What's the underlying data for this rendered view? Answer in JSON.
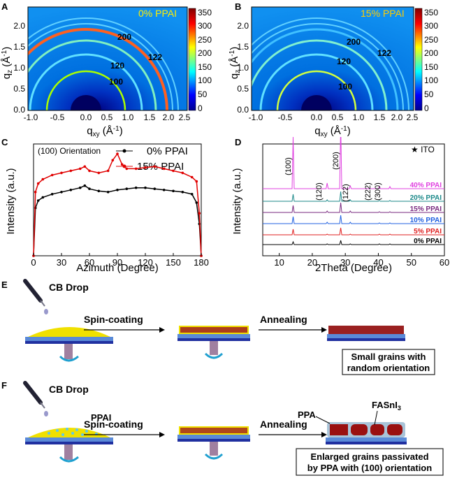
{
  "panels": {
    "A": {
      "letter": "A",
      "label": "0% PPAI",
      "xticks": [
        "-1.0",
        "-0.5",
        "0.0",
        "0.5",
        "1.0",
        "1.5",
        "2.0",
        "2.5"
      ],
      "yticks": [
        "0.0",
        "0.5",
        "1.0",
        "1.5",
        "2.0"
      ],
      "peaks": [
        "200",
        "120",
        "122",
        "100"
      ],
      "cbar_ticks": [
        "350",
        "300",
        "250",
        "200",
        "150",
        "100",
        "50",
        "0"
      ]
    },
    "B": {
      "letter": "B",
      "label": "15% PPAI",
      "xticks": [
        "-1.0",
        "-0.5",
        "0.0",
        "0.5",
        "1.0",
        "1.5",
        "2.0",
        "2.5"
      ],
      "yticks": [
        "0.0",
        "0.5",
        "1.0",
        "1.5",
        "2.0"
      ],
      "peaks": [
        "200",
        "120",
        "122",
        "100"
      ],
      "cbar_ticks": [
        "350",
        "300",
        "250",
        "200",
        "150",
        "100",
        "50",
        "0"
      ]
    },
    "C": {
      "letter": "C",
      "title": "(100) Orientation",
      "legend": [
        "0% PPAI",
        "15% PPAI"
      ],
      "xlabel": "Azimuth (Degree)",
      "ylabel": "Intensity (a.u.)",
      "xticks": [
        "0",
        "30",
        "60",
        "90",
        "120",
        "150",
        "180"
      ]
    },
    "D": {
      "letter": "D",
      "ito": "ITO",
      "xlabel": "2Theta (Degree)",
      "ylabel": "Intensity (a.u.)",
      "xticks": [
        "10",
        "20",
        "30",
        "40",
        "50",
        "60"
      ],
      "peaks": [
        "(100)",
        "(120)",
        "(200)",
        "(122)",
        "(222)",
        "(300)"
      ],
      "traces": [
        {
          "name": "40% PPAI",
          "color": "#e040e0"
        },
        {
          "name": "20% PPAI",
          "color": "#1d8a8a"
        },
        {
          "name": "15% PPAI",
          "color": "#7a2a80"
        },
        {
          "name": "10% PPAI",
          "color": "#2060e0"
        },
        {
          "name": "5% PPAI",
          "color": "#e02020"
        },
        {
          "name": "0% PPAI",
          "color": "#000000"
        }
      ]
    },
    "E": {
      "letter": "E",
      "drop": "CB Drop",
      "step1": "Spin-coating",
      "step2": "Annealing",
      "result_line1": "Small grains with",
      "result_line2": "random orientation"
    },
    "F": {
      "letter": "F",
      "drop": "CB Drop",
      "ppai": "PPAI",
      "step1": "Spin-coating",
      "step2": "Annealing",
      "ppa": "PPA",
      "fasni": "FASnI",
      "fasni_sub": "3",
      "result_line1": "Enlarged grains passivated",
      "result_line2": "by PPA with (100) orientation"
    }
  },
  "chart_data": [
    {
      "type": "line",
      "title": "(100) Orientation",
      "xlabel": "Azimuth (Degree)",
      "ylabel": "Intensity (a.u.)",
      "xlim": [
        0,
        180
      ],
      "series": [
        {
          "name": "0% PPAI",
          "x": [
            0,
            2,
            5,
            10,
            20,
            30,
            40,
            50,
            55,
            60,
            70,
            80,
            90,
            100,
            110,
            120,
            130,
            140,
            150,
            160,
            170,
            175,
            178,
            180
          ],
          "y": [
            0,
            0.45,
            0.52,
            0.55,
            0.58,
            0.6,
            0.62,
            0.64,
            0.66,
            0.63,
            0.61,
            0.6,
            0.62,
            0.63,
            0.64,
            0.64,
            0.63,
            0.62,
            0.61,
            0.6,
            0.58,
            0.5,
            0.3,
            0.0
          ]
        },
        {
          "name": "15% PPAI",
          "x": [
            0,
            2,
            5,
            10,
            20,
            30,
            40,
            50,
            55,
            60,
            70,
            80,
            85,
            90,
            95,
            100,
            110,
            120,
            130,
            140,
            150,
            160,
            170,
            175,
            178,
            180
          ],
          "y": [
            0,
            0.6,
            0.68,
            0.72,
            0.76,
            0.78,
            0.8,
            0.82,
            0.84,
            0.8,
            0.78,
            0.8,
            0.9,
            0.96,
            0.86,
            0.82,
            0.82,
            0.83,
            0.84,
            0.82,
            0.8,
            0.78,
            0.74,
            0.7,
            0.4,
            0.0
          ]
        }
      ]
    },
    {
      "type": "line",
      "xlabel": "2Theta (Degree)",
      "ylabel": "Intensity (a.u.)",
      "xlim": [
        5,
        60
      ],
      "peak_positions": [
        14.2,
        24.5,
        28.6,
        31.5,
        40.3,
        43.5
      ]
    }
  ]
}
